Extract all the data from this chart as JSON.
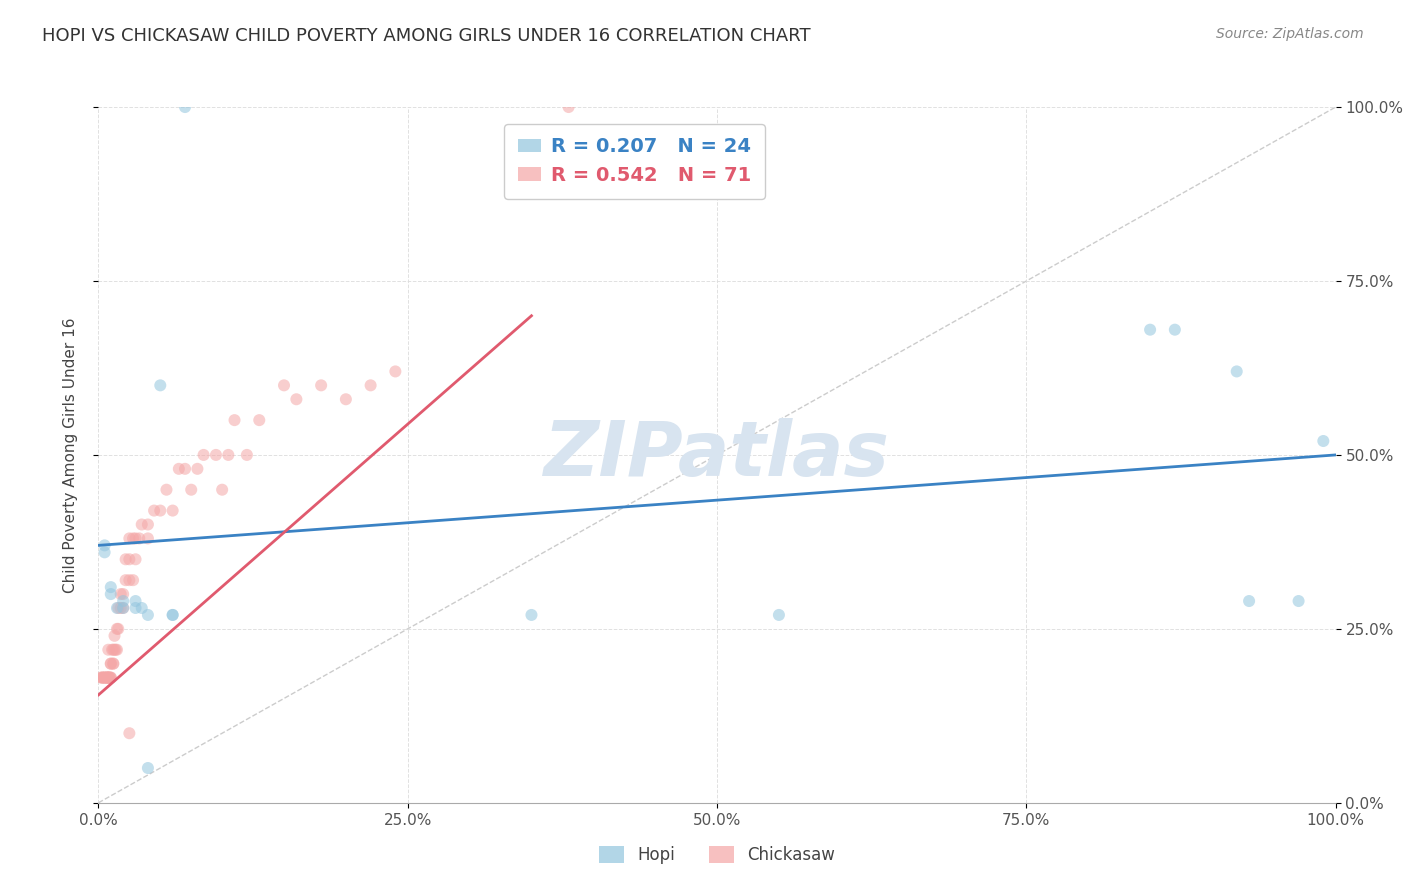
{
  "title": "HOPI VS CHICKASAW CHILD POVERTY AMONG GIRLS UNDER 16 CORRELATION CHART",
  "source": "Source: ZipAtlas.com",
  "ylabel": "Child Poverty Among Girls Under 16",
  "hopi_R": 0.207,
  "hopi_N": 24,
  "chickasaw_R": 0.542,
  "chickasaw_N": 71,
  "hopi_color": "#92c5de",
  "chickasaw_color": "#f4a6a6",
  "hopi_line_color": "#3a82c4",
  "chickasaw_line_color": "#e05a6e",
  "diagonal_color": "#cccccc",
  "background_color": "#ffffff",
  "grid_color": "#dddddd",
  "watermark_color": "#d8e4f0",
  "title_color": "#333333",
  "axis_label_color": "#444444",
  "tick_label_color": "#555555",
  "xlim": [
    0,
    1
  ],
  "ylim": [
    0,
    1
  ],
  "xticks": [
    0,
    0.25,
    0.5,
    0.75,
    1.0
  ],
  "yticks": [
    0.0,
    0.25,
    0.5,
    0.75,
    1.0
  ],
  "xtick_labels": [
    "0.0%",
    "25.0%",
    "50.0%",
    "75.0%",
    "100.0%"
  ],
  "ytick_labels": [
    "0.0%",
    "25.0%",
    "50.0%",
    "75.0%",
    "100.0%"
  ],
  "hopi_x": [
    0.005,
    0.005,
    0.01,
    0.01,
    0.015,
    0.02,
    0.02,
    0.03,
    0.03,
    0.035,
    0.04,
    0.05,
    0.06,
    0.06,
    0.35,
    0.55,
    0.85,
    0.87,
    0.92,
    0.93,
    0.97,
    0.99,
    0.04,
    0.07
  ],
  "hopi_y": [
    0.37,
    0.36,
    0.31,
    0.3,
    0.28,
    0.29,
    0.28,
    0.28,
    0.29,
    0.28,
    0.27,
    0.6,
    0.27,
    0.27,
    0.27,
    0.27,
    0.68,
    0.68,
    0.62,
    0.29,
    0.29,
    0.52,
    0.05,
    1.0
  ],
  "chickasaw_x": [
    0.002,
    0.003,
    0.003,
    0.004,
    0.005,
    0.005,
    0.005,
    0.007,
    0.007,
    0.007,
    0.007,
    0.008,
    0.008,
    0.009,
    0.009,
    0.01,
    0.01,
    0.01,
    0.011,
    0.012,
    0.012,
    0.013,
    0.013,
    0.014,
    0.015,
    0.015,
    0.016,
    0.016,
    0.018,
    0.018,
    0.02,
    0.02,
    0.022,
    0.022,
    0.025,
    0.025,
    0.025,
    0.028,
    0.028,
    0.03,
    0.03,
    0.033,
    0.035,
    0.04,
    0.04,
    0.045,
    0.05,
    0.055,
    0.06,
    0.065,
    0.07,
    0.075,
    0.08,
    0.085,
    0.095,
    0.1,
    0.105,
    0.11,
    0.12,
    0.13,
    0.15,
    0.16,
    0.18,
    0.2,
    0.22,
    0.24,
    0.008,
    0.01,
    0.012,
    0.025,
    0.38
  ],
  "chickasaw_y": [
    0.18,
    0.18,
    0.18,
    0.18,
    0.18,
    0.18,
    0.18,
    0.18,
    0.18,
    0.18,
    0.18,
    0.18,
    0.18,
    0.18,
    0.18,
    0.18,
    0.18,
    0.2,
    0.22,
    0.22,
    0.2,
    0.22,
    0.24,
    0.22,
    0.22,
    0.25,
    0.25,
    0.28,
    0.28,
    0.3,
    0.28,
    0.3,
    0.32,
    0.35,
    0.32,
    0.35,
    0.38,
    0.32,
    0.38,
    0.35,
    0.38,
    0.38,
    0.4,
    0.38,
    0.4,
    0.42,
    0.42,
    0.45,
    0.42,
    0.48,
    0.48,
    0.45,
    0.48,
    0.5,
    0.5,
    0.45,
    0.5,
    0.55,
    0.5,
    0.55,
    0.6,
    0.58,
    0.6,
    0.58,
    0.6,
    0.62,
    0.22,
    0.2,
    0.2,
    0.1,
    1.0
  ],
  "marker_size": 75,
  "marker_alpha": 0.55,
  "legend_fontsize": 14,
  "title_fontsize": 13,
  "ylabel_fontsize": 11,
  "tick_fontsize": 11,
  "hopi_line_x0": 0.0,
  "hopi_line_y0": 0.37,
  "hopi_line_x1": 1.0,
  "hopi_line_y1": 0.5,
  "chickasaw_line_x0": 0.0,
  "chickasaw_line_y0": 0.155,
  "chickasaw_line_x1": 0.35,
  "chickasaw_line_y1": 0.7
}
